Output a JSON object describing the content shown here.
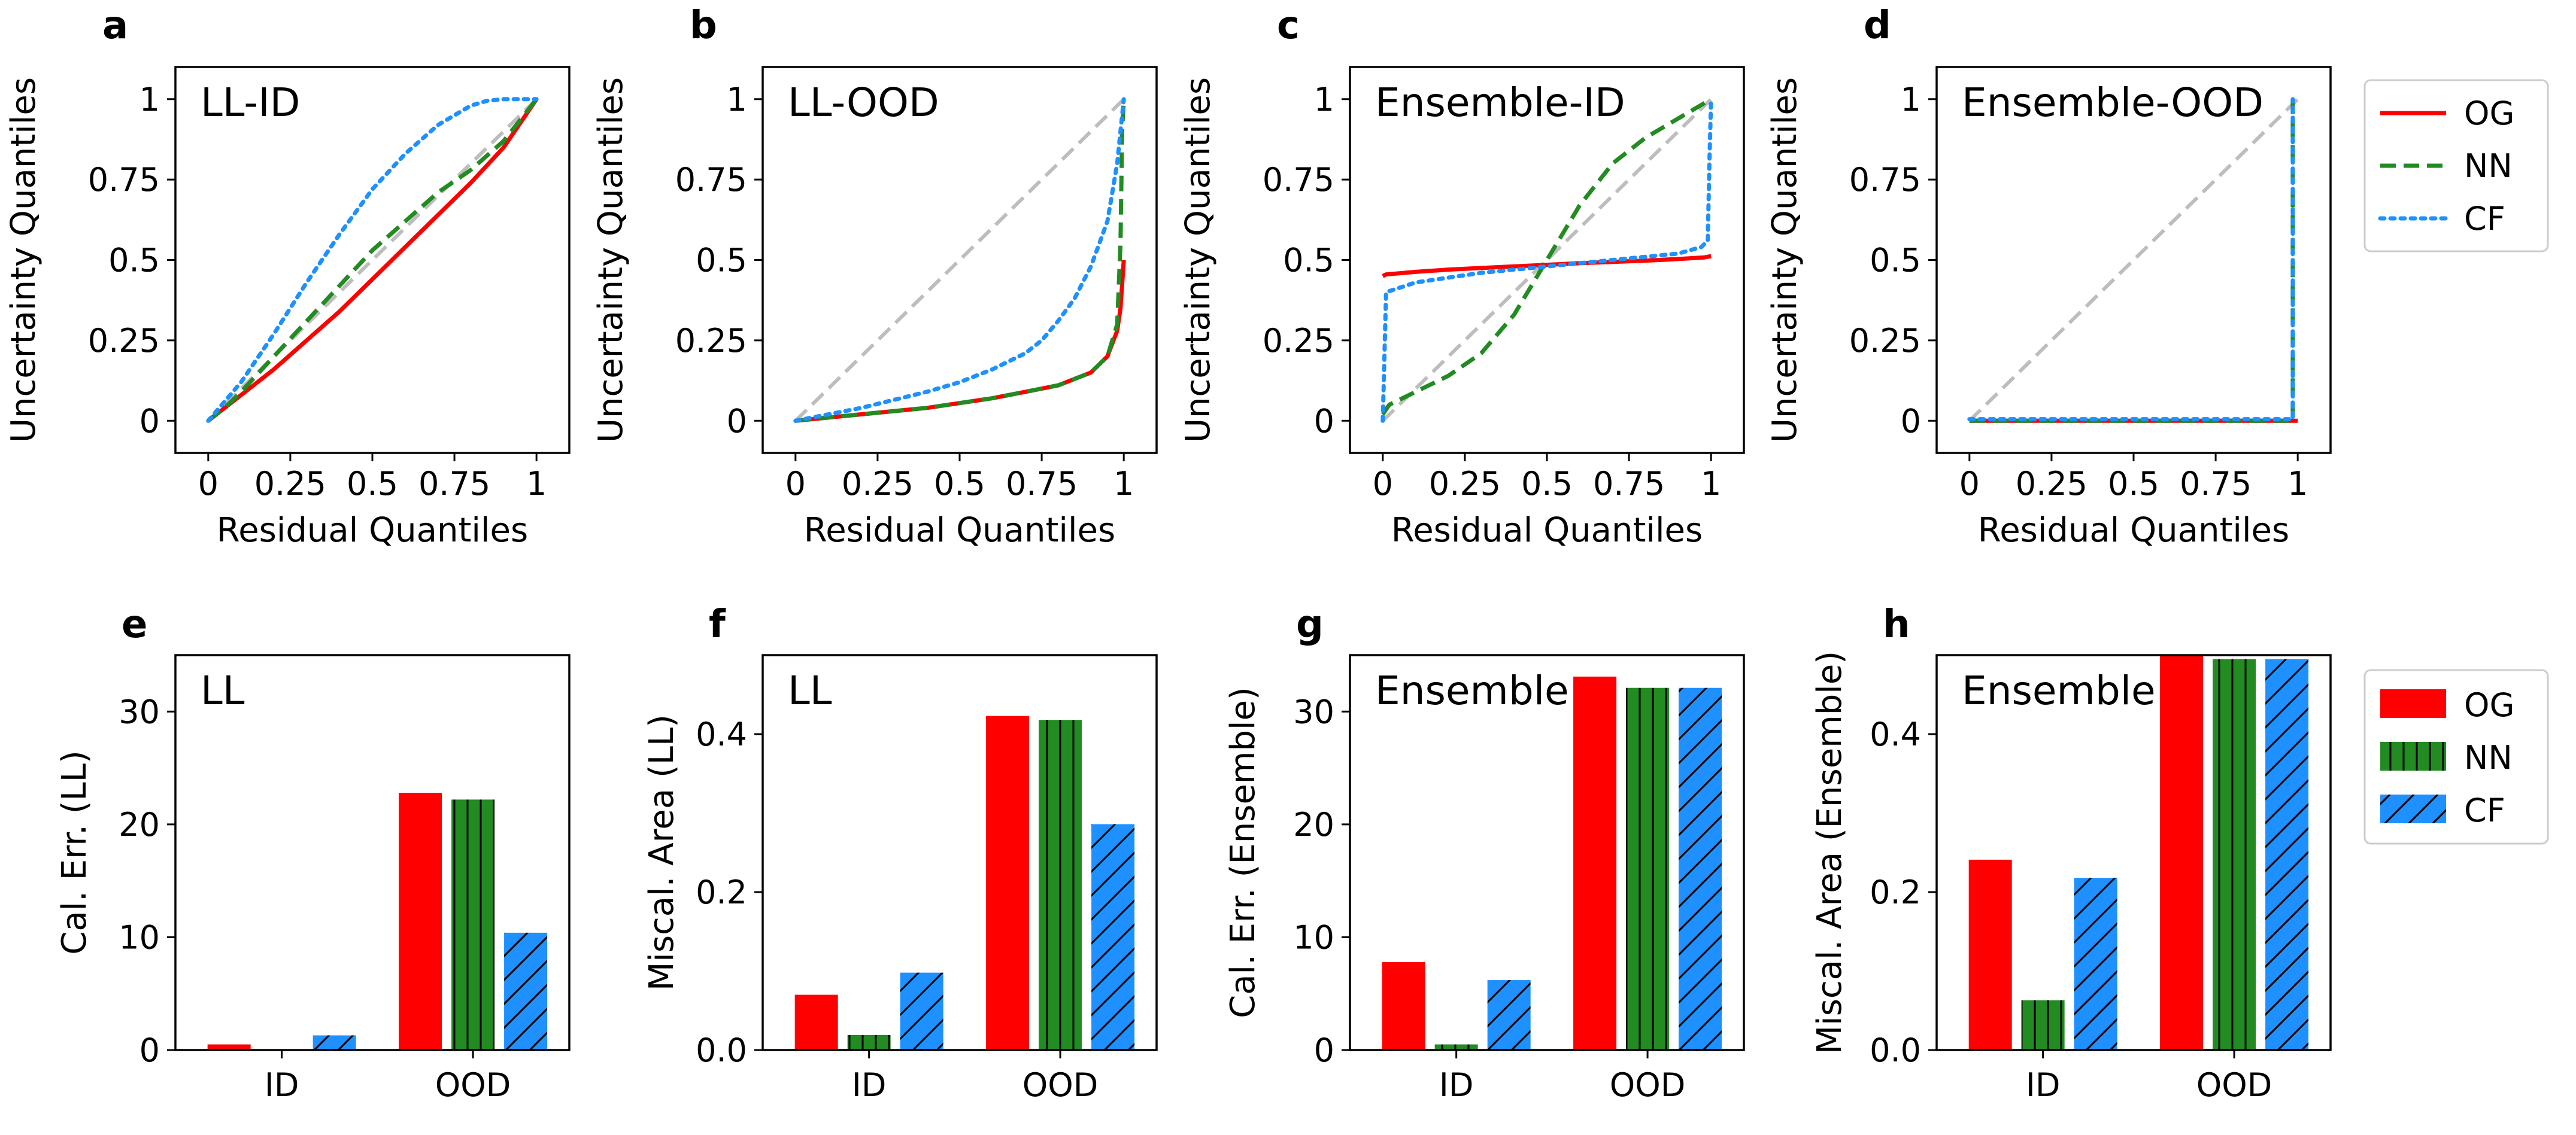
{
  "figure": {
    "legend_line": [
      {
        "name": "OG",
        "color": "#ff0000",
        "style": "solid"
      },
      {
        "name": "NN",
        "color": "#228b22",
        "style": "dashed"
      },
      {
        "name": "CF",
        "color": "#1e90ff",
        "style": "dotted"
      }
    ],
    "legend_bar": [
      {
        "name": "OG",
        "color": "#ff0000",
        "hatch": "none"
      },
      {
        "name": "NN",
        "color": "#228b22",
        "hatch": "vertical"
      },
      {
        "name": "CF",
        "color": "#1e90ff",
        "hatch": "diagonal"
      }
    ]
  },
  "chart_data": [
    {
      "id": "a",
      "type": "line",
      "panel_label": "a",
      "inset_label": "LL-ID",
      "xlabel": "Residual Quantiles",
      "ylabel": "Uncertainty Quantiles",
      "xlim": [
        -0.1,
        1.1
      ],
      "ylim": [
        -0.1,
        1.1
      ],
      "xticks": [
        0,
        0.25,
        0.5,
        0.75,
        1
      ],
      "xtick_labels": [
        "0",
        "0.25",
        "0.5",
        "0.75",
        "1"
      ],
      "yticks": [
        0,
        0.25,
        0.5,
        0.75,
        1
      ],
      "ytick_labels": [
        "0",
        "0.25",
        "0.5",
        "0.75",
        "1"
      ],
      "series": [
        {
          "name": "OG",
          "x": [
            0,
            0.05,
            0.1,
            0.2,
            0.3,
            0.4,
            0.5,
            0.6,
            0.7,
            0.8,
            0.9,
            1.0
          ],
          "y": [
            0,
            0.04,
            0.08,
            0.16,
            0.25,
            0.34,
            0.44,
            0.54,
            0.64,
            0.74,
            0.85,
            1.0
          ]
        },
        {
          "name": "NN",
          "x": [
            0,
            0.05,
            0.1,
            0.2,
            0.3,
            0.4,
            0.5,
            0.6,
            0.7,
            0.8,
            0.9,
            1.0
          ],
          "y": [
            0,
            0.04,
            0.09,
            0.2,
            0.31,
            0.42,
            0.53,
            0.62,
            0.71,
            0.78,
            0.87,
            1.0
          ]
        },
        {
          "name": "CF",
          "x": [
            0,
            0.05,
            0.1,
            0.2,
            0.3,
            0.4,
            0.5,
            0.6,
            0.7,
            0.8,
            0.85,
            0.9,
            0.95,
            1.0
          ],
          "y": [
            0,
            0.06,
            0.12,
            0.27,
            0.43,
            0.58,
            0.72,
            0.83,
            0.92,
            0.98,
            0.995,
            1.0,
            1.0,
            1.0
          ]
        },
        {
          "name": "diag",
          "x": [
            0,
            1
          ],
          "y": [
            0,
            1
          ]
        }
      ]
    },
    {
      "id": "b",
      "type": "line",
      "panel_label": "b",
      "inset_label": "LL-OOD",
      "xlabel": "Residual Quantiles",
      "ylabel": "Uncertainty Quantiles",
      "xlim": [
        -0.1,
        1.1
      ],
      "ylim": [
        -0.1,
        1.1
      ],
      "xticks": [
        0,
        0.25,
        0.5,
        0.75,
        1
      ],
      "xtick_labels": [
        "0",
        "0.25",
        "0.5",
        "0.75",
        "1"
      ],
      "yticks": [
        0,
        0.25,
        0.5,
        0.75,
        1
      ],
      "ytick_labels": [
        "0",
        "0.25",
        "0.5",
        "0.75",
        "1"
      ],
      "series": [
        {
          "name": "diag",
          "x": [
            0,
            1
          ],
          "y": [
            0,
            1
          ]
        },
        {
          "name": "OG",
          "x": [
            0,
            0.1,
            0.2,
            0.3,
            0.4,
            0.5,
            0.6,
            0.7,
            0.8,
            0.9,
            0.95,
            0.98,
            0.99,
            1.0
          ],
          "y": [
            0,
            0.01,
            0.02,
            0.03,
            0.04,
            0.055,
            0.07,
            0.09,
            0.11,
            0.15,
            0.2,
            0.28,
            0.35,
            0.5
          ]
        },
        {
          "name": "NN",
          "x": [
            0,
            0.1,
            0.2,
            0.3,
            0.4,
            0.5,
            0.6,
            0.7,
            0.8,
            0.9,
            0.95,
            0.98,
            0.99,
            0.995,
            1.0
          ],
          "y": [
            0,
            0.01,
            0.02,
            0.03,
            0.04,
            0.055,
            0.07,
            0.09,
            0.11,
            0.15,
            0.2,
            0.3,
            0.55,
            0.9,
            1.0
          ]
        },
        {
          "name": "CF",
          "x": [
            0,
            0.1,
            0.2,
            0.3,
            0.4,
            0.5,
            0.6,
            0.7,
            0.75,
            0.8,
            0.85,
            0.9,
            0.95,
            0.98,
            1.0
          ],
          "y": [
            0,
            0.02,
            0.04,
            0.065,
            0.09,
            0.12,
            0.16,
            0.21,
            0.25,
            0.31,
            0.38,
            0.48,
            0.62,
            0.8,
            1.0
          ]
        }
      ]
    },
    {
      "id": "c",
      "type": "line",
      "panel_label": "c",
      "inset_label": "Ensemble-ID",
      "xlabel": "Residual Quantiles",
      "ylabel": "Uncertainty Quantiles",
      "xlim": [
        -0.1,
        1.1
      ],
      "ylim": [
        -0.1,
        1.1
      ],
      "xticks": [
        0,
        0.25,
        0.5,
        0.75,
        1
      ],
      "xtick_labels": [
        "0",
        "0.25",
        "0.5",
        "0.75",
        "1"
      ],
      "yticks": [
        0,
        0.25,
        0.5,
        0.75,
        1
      ],
      "ytick_labels": [
        "0",
        "0.25",
        "0.5",
        "0.75",
        "1"
      ],
      "series": [
        {
          "name": "diag",
          "x": [
            0,
            1
          ],
          "y": [
            0,
            1
          ]
        },
        {
          "name": "OG",
          "x": [
            0,
            0.01,
            0.1,
            0.2,
            0.3,
            0.4,
            0.5,
            0.6,
            0.7,
            0.8,
            0.9,
            0.98,
            1.0
          ],
          "y": [
            0.45,
            0.455,
            0.463,
            0.47,
            0.475,
            0.48,
            0.485,
            0.49,
            0.494,
            0.498,
            0.503,
            0.508,
            0.512
          ]
        },
        {
          "name": "NN",
          "x": [
            0,
            0.02,
            0.1,
            0.2,
            0.3,
            0.4,
            0.5,
            0.6,
            0.7,
            0.8,
            0.9,
            1.0
          ],
          "y": [
            0.02,
            0.05,
            0.09,
            0.14,
            0.21,
            0.33,
            0.5,
            0.67,
            0.8,
            0.88,
            0.94,
            1.0
          ]
        },
        {
          "name": "CF",
          "x": [
            0,
            0.005,
            0.01,
            0.1,
            0.3,
            0.5,
            0.7,
            0.9,
            0.97,
            0.99,
            0.995,
            1.0
          ],
          "y": [
            0,
            0.2,
            0.4,
            0.43,
            0.46,
            0.48,
            0.5,
            0.52,
            0.54,
            0.56,
            0.8,
            1.0
          ]
        }
      ]
    },
    {
      "id": "d",
      "type": "line",
      "panel_label": "d",
      "inset_label": "Ensemble-OOD",
      "xlabel": "Residual Quantiles",
      "ylabel": "Uncertainty Quantiles",
      "xlim": [
        -0.1,
        1.1
      ],
      "ylim": [
        -0.1,
        1.1
      ],
      "xticks": [
        0,
        0.25,
        0.5,
        0.75,
        1
      ],
      "xtick_labels": [
        "0",
        "0.25",
        "0.5",
        "0.75",
        "1"
      ],
      "yticks": [
        0,
        0.25,
        0.5,
        0.75,
        1
      ],
      "ytick_labels": [
        "0",
        "0.25",
        "0.5",
        "0.75",
        "1"
      ],
      "series": [
        {
          "name": "diag",
          "x": [
            0,
            1
          ],
          "y": [
            0,
            1
          ]
        },
        {
          "name": "OG",
          "x": [
            0,
            0.99,
            1.0
          ],
          "y": [
            0,
            0,
            0
          ]
        },
        {
          "name": "NN",
          "x": [
            0,
            0.985,
            0.985
          ],
          "y": [
            0,
            0,
            1.0
          ]
        },
        {
          "name": "CF",
          "x": [
            0,
            0.985,
            0.985
          ],
          "y": [
            0.005,
            0.005,
            1.0
          ]
        }
      ]
    },
    {
      "id": "e",
      "type": "bar",
      "panel_label": "e",
      "inset_label": "LL",
      "xlabel": "",
      "ylabel": "Cal. Err. (LL)",
      "categories": [
        "ID",
        "OOD"
      ],
      "ylim": [
        0,
        35
      ],
      "yticks": [
        0,
        10,
        20,
        30
      ],
      "ytick_labels": [
        "0",
        "10",
        "20",
        "30"
      ],
      "series": [
        {
          "name": "OG",
          "values": [
            0.5,
            22.8
          ]
        },
        {
          "name": "NN",
          "values": [
            0.0,
            22.2
          ]
        },
        {
          "name": "CF",
          "values": [
            1.3,
            10.4
          ]
        }
      ]
    },
    {
      "id": "f",
      "type": "bar",
      "panel_label": "f",
      "inset_label": "LL",
      "xlabel": "",
      "ylabel": "Miscal. Area (LL)",
      "categories": [
        "ID",
        "OOD"
      ],
      "ylim": [
        0,
        0.5
      ],
      "yticks": [
        0,
        0.2,
        0.4
      ],
      "ytick_labels": [
        "0.0",
        "0.2",
        "0.4"
      ],
      "series": [
        {
          "name": "OG",
          "values": [
            0.07,
            0.423
          ]
        },
        {
          "name": "NN",
          "values": [
            0.019,
            0.418
          ]
        },
        {
          "name": "CF",
          "values": [
            0.098,
            0.286
          ]
        }
      ]
    },
    {
      "id": "g",
      "type": "bar",
      "panel_label": "g",
      "inset_label": "Ensemble",
      "xlabel": "",
      "ylabel": "Cal. Err. (Ensemble)",
      "categories": [
        "ID",
        "OOD"
      ],
      "ylim": [
        0,
        35
      ],
      "yticks": [
        0,
        10,
        20,
        30
      ],
      "ytick_labels": [
        "0",
        "10",
        "20",
        "30"
      ],
      "series": [
        {
          "name": "OG",
          "values": [
            7.8,
            33.1
          ]
        },
        {
          "name": "NN",
          "values": [
            0.5,
            32.1
          ]
        },
        {
          "name": "CF",
          "values": [
            6.2,
            32.1
          ]
        }
      ]
    },
    {
      "id": "h",
      "type": "bar",
      "panel_label": "h",
      "inset_label": "Ensemble",
      "xlabel": "",
      "ylabel": "Miscal. Area (Ensemble)",
      "categories": [
        "ID",
        "OOD"
      ],
      "ylim": [
        0,
        0.5
      ],
      "yticks": [
        0,
        0.2,
        0.4
      ],
      "ytick_labels": [
        "0.0",
        "0.2",
        "0.4"
      ],
      "series": [
        {
          "name": "OG",
          "values": [
            0.241,
            0.499
          ]
        },
        {
          "name": "NN",
          "values": [
            0.063,
            0.495
          ]
        },
        {
          "name": "CF",
          "values": [
            0.218,
            0.495
          ]
        }
      ]
    }
  ]
}
